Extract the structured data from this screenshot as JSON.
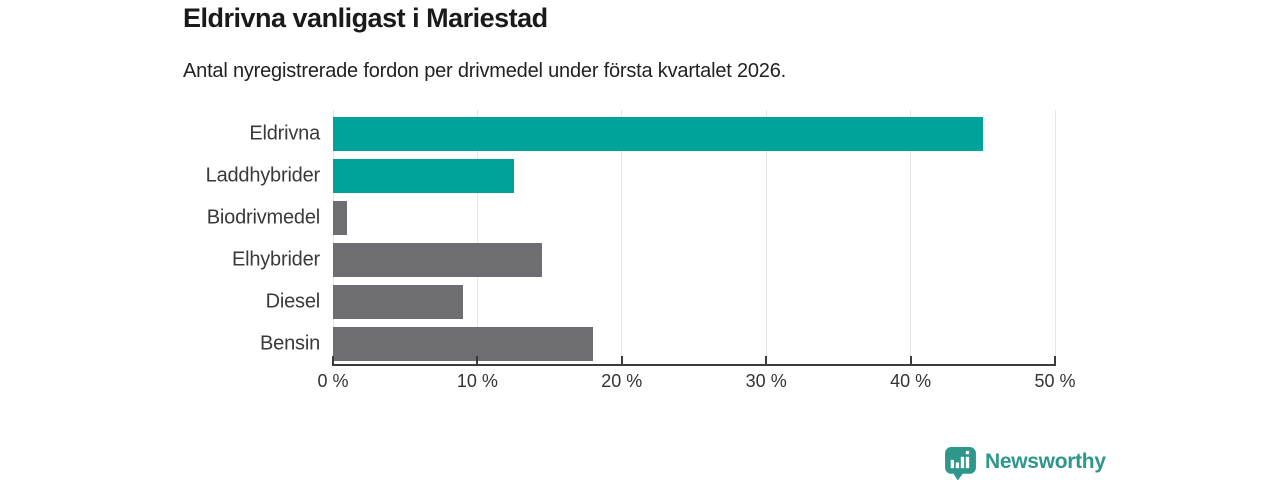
{
  "chart_data": {
    "type": "bar",
    "orientation": "horizontal",
    "title": "Eldrivna vanligast i Mariestad",
    "subtitle": "Antal nyregistrerade fordon per drivmedel under första kvartalet 2026.",
    "categories": [
      "Eldrivna",
      "Laddhybrider",
      "Biodrivmedel",
      "Elhybrider",
      "Diesel",
      "Bensin"
    ],
    "values": [
      45,
      12.5,
      1,
      14.5,
      9,
      18
    ],
    "unit": "%",
    "bar_colors": [
      "#00a39c",
      "#00a39c",
      "#6e6d72",
      "#6e6d72",
      "#6e6d72",
      "#6e6d72"
    ],
    "xlim": [
      0,
      50
    ],
    "x_ticks": [
      0,
      10,
      20,
      30,
      40,
      50
    ],
    "x_tick_labels": [
      "0 %",
      "10 %",
      "20 %",
      "30 %",
      "40 %",
      "50 %"
    ],
    "grid": "vertical",
    "legend": "none",
    "data_labels": "none"
  },
  "branding": {
    "logo_text": "Newsworthy"
  },
  "colors": {
    "accent_teal": "#00a39c",
    "neutral_gray": "#6e6d72",
    "logo_teal": "#2f968b",
    "axis": "#3b3b3b",
    "gridline": "#e6e6e6",
    "title_text": "#1a1a1a",
    "body_text": "#333333"
  }
}
